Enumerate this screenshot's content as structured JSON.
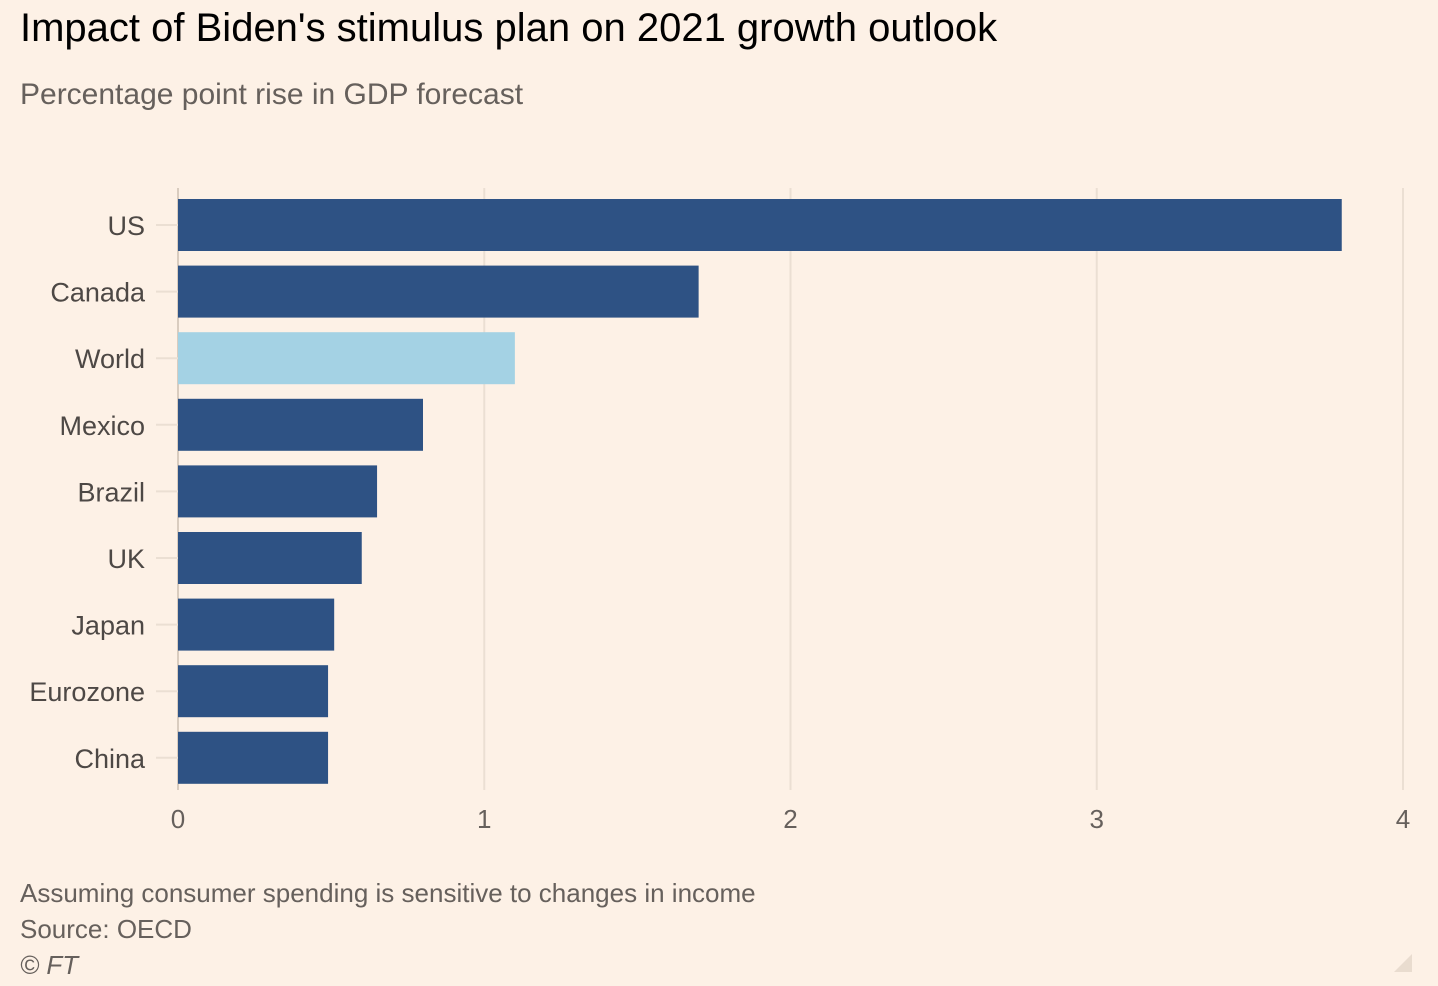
{
  "chart_data": {
    "type": "bar",
    "orientation": "horizontal",
    "title": "Impact of Biden's stimulus plan on 2021 growth outlook",
    "subtitle": "Percentage point rise in GDP forecast",
    "categories": [
      "US",
      "Canada",
      "World",
      "Mexico",
      "Brazil",
      "UK",
      "Japan",
      "Eurozone",
      "China"
    ],
    "values": [
      3.8,
      1.7,
      1.1,
      0.8,
      0.65,
      0.6,
      0.51,
      0.49,
      0.49
    ],
    "highlight": [
      "World"
    ],
    "colors": {
      "default": "#2e5284",
      "highlight": "#a4d2e4",
      "grid": "#ebdfd3",
      "tick": "#66605c"
    },
    "xlim": [
      0,
      4
    ],
    "xticks": [
      0,
      1,
      2,
      3,
      4
    ],
    "grid": true,
    "xlabel": "",
    "ylabel": ""
  },
  "footer": {
    "note": "Assuming consumer spending is sensitive to changes in income",
    "source": "Source: OECD",
    "credit": "© FT"
  }
}
